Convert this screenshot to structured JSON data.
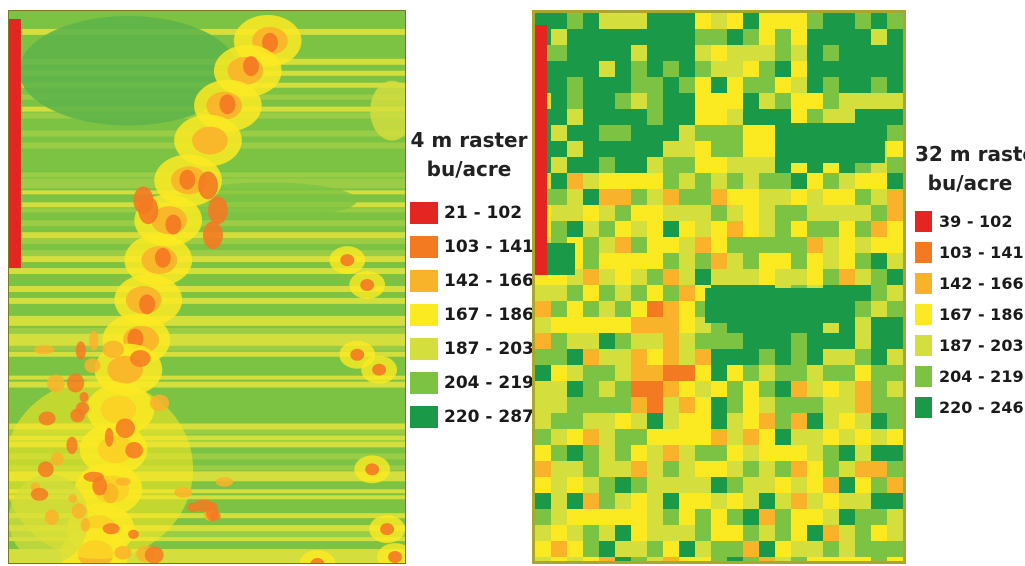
{
  "colors": {
    "red": "#e52521",
    "orange": "#f47a22",
    "light_orange": "#f9b32a",
    "yellow": "#fbea22",
    "yellow_green": "#d4de3c",
    "green": "#7dc343",
    "dark_green": "#1a9a48"
  },
  "maps": [
    {
      "id": "4m",
      "legend": {
        "title_line1": "4 m raster",
        "title_line2": "bu/acre",
        "classes": [
          {
            "label": "21 - 102",
            "color": "#e52521"
          },
          {
            "label": "103 - 141",
            "color": "#f47a22"
          },
          {
            "label": "142 - 166",
            "color": "#f9b32a"
          },
          {
            "label": "167 - 186",
            "color": "#fbea22"
          },
          {
            "label": "187 - 203",
            "color": "#d4de3c"
          },
          {
            "label": "204 - 219",
            "color": "#7dc343"
          },
          {
            "label": "220 - 287",
            "color": "#1a9a48"
          }
        ]
      }
    },
    {
      "id": "32m",
      "legend": {
        "title_line1": "32 m raster",
        "title_line2": "bu/acre",
        "classes": [
          {
            "label": "39 - 102",
            "color": "#e52521"
          },
          {
            "label": "103 - 141",
            "color": "#f47a22"
          },
          {
            "label": "142 - 166",
            "color": "#f9b32a"
          },
          {
            "label": "167 - 186",
            "color": "#fbea22"
          },
          {
            "label": "187 - 203",
            "color": "#d4de3c"
          },
          {
            "label": "204 - 219",
            "color": "#7dc343"
          },
          {
            "label": "220 - 246",
            "color": "#1a9a48"
          }
        ]
      }
    }
  ]
}
